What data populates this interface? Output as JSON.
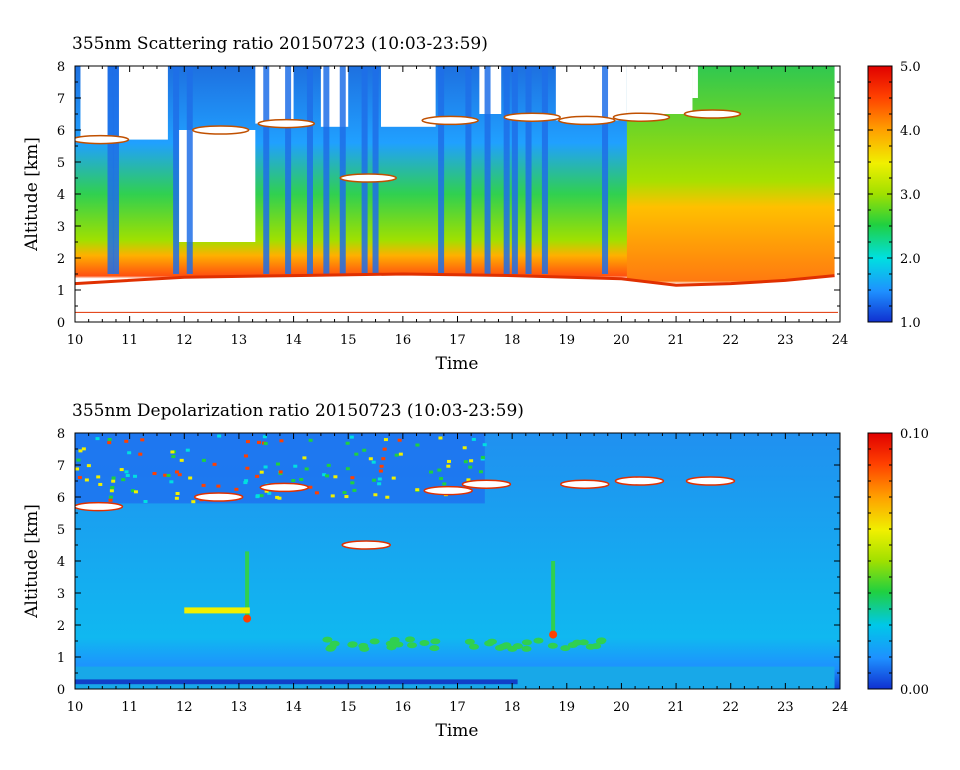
{
  "chart_data": [
    {
      "type": "heatmap",
      "title": "355nm Scattering ratio  20150723 (10:03-23:59)",
      "xlabel": "Time",
      "ylabel": "Altitude [km]",
      "xlim": [
        10,
        24
      ],
      "ylim": [
        0,
        8
      ],
      "x_ticks": [
        "10",
        "11",
        "12",
        "13",
        "14",
        "15",
        "16",
        "17",
        "18",
        "19",
        "20",
        "21",
        "22",
        "23",
        "24"
      ],
      "y_ticks": [
        "0",
        "1",
        "2",
        "3",
        "4",
        "5",
        "6",
        "7",
        "8"
      ],
      "colorbar": {
        "min": 1.0,
        "max": 5.0,
        "ticks": [
          "1.0",
          "2.0",
          "3.0",
          "4.0",
          "5.0"
        ]
      },
      "colormap": [
        "#1030d0",
        "#1e90ff",
        "#00e0e0",
        "#20d040",
        "#a0e000",
        "#f0f000",
        "#ffa000",
        "#ff4000",
        "#e00000"
      ],
      "features": {
        "cloud_base_height_km": {
          "x": [
            10.0,
            12.0,
            14.0,
            16.0,
            18.0,
            20.0,
            21.0,
            22.0,
            23.0,
            23.9
          ],
          "y": [
            1.2,
            1.4,
            1.45,
            1.5,
            1.45,
            1.35,
            1.15,
            1.2,
            1.3,
            1.45
          ]
        },
        "cirrus_layer_km": {
          "x": [
            10.1,
            12.3,
            13.5,
            15.0,
            16.5,
            18.0,
            19.0,
            20.0,
            21.3
          ],
          "y": [
            5.7,
            6.0,
            6.2,
            4.5,
            6.3,
            6.4,
            6.3,
            6.4,
            6.5
          ]
        },
        "ground_line_km": 0.3
      }
    },
    {
      "type": "heatmap",
      "title": "355nm Depolarization ratio  20150723 (10:03-23:59)",
      "xlabel": "Time",
      "ylabel": "Altitude [km]",
      "xlim": [
        10,
        24
      ],
      "ylim": [
        0,
        8
      ],
      "x_ticks": [
        "10",
        "11",
        "12",
        "13",
        "14",
        "15",
        "16",
        "17",
        "18",
        "19",
        "20",
        "21",
        "22",
        "23",
        "24"
      ],
      "y_ticks": [
        "0",
        "1",
        "2",
        "3",
        "4",
        "5",
        "6",
        "7",
        "8"
      ],
      "colorbar": {
        "min": 0.0,
        "max": 0.1,
        "ticks": [
          "0.00",
          "0.10"
        ]
      },
      "colormap": [
        "#1030d0",
        "#1e90ff",
        "#00c8e8",
        "#20d040",
        "#a0e000",
        "#f0f000",
        "#ffa000",
        "#ff4000",
        "#e00000"
      ],
      "features": {
        "cirrus_depol_km": {
          "x": [
            10.1,
            12.3,
            13.5,
            15.0,
            16.5,
            17.2,
            19.0,
            20.0,
            21.3
          ],
          "y": [
            5.7,
            6.0,
            6.3,
            4.5,
            6.2,
            6.4,
            6.4,
            6.5,
            6.5
          ]
        },
        "low_layer_km": 1.4
      }
    }
  ]
}
